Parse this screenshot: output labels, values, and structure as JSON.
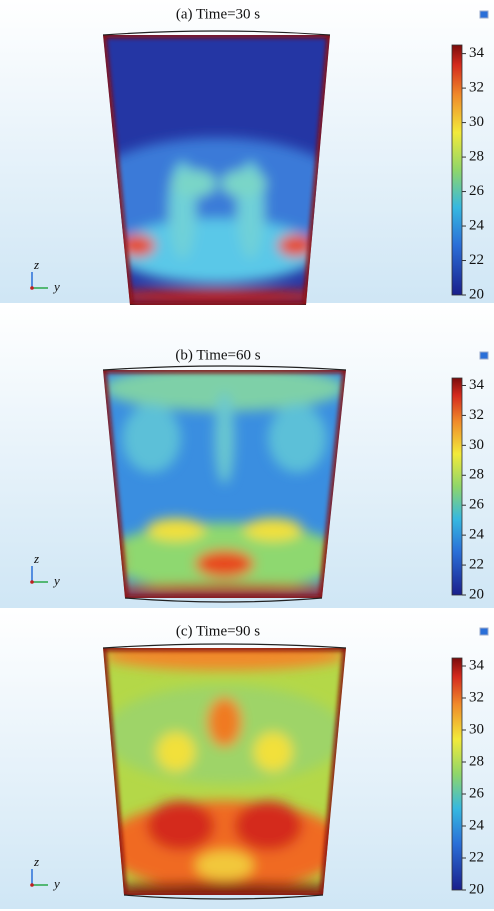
{
  "panels": [
    {
      "title": "(a) Time=30 s",
      "colorbar": {
        "ticks": [
          20,
          22,
          24,
          26,
          28,
          30,
          32,
          34
        ]
      },
      "axes": {
        "vertical": "z",
        "horizontal": "y"
      }
    },
    {
      "title": "(b) Time=60 s",
      "colorbar": {
        "ticks": [
          20,
          22,
          24,
          26,
          28,
          30,
          32,
          34
        ]
      },
      "axes": {
        "vertical": "z",
        "horizontal": "y"
      }
    },
    {
      "title": "(c) Time=90 s",
      "colorbar": {
        "ticks": [
          20,
          22,
          24,
          26,
          28,
          30,
          32,
          34
        ]
      },
      "axes": {
        "vertical": "z",
        "horizontal": "y"
      }
    }
  ]
}
